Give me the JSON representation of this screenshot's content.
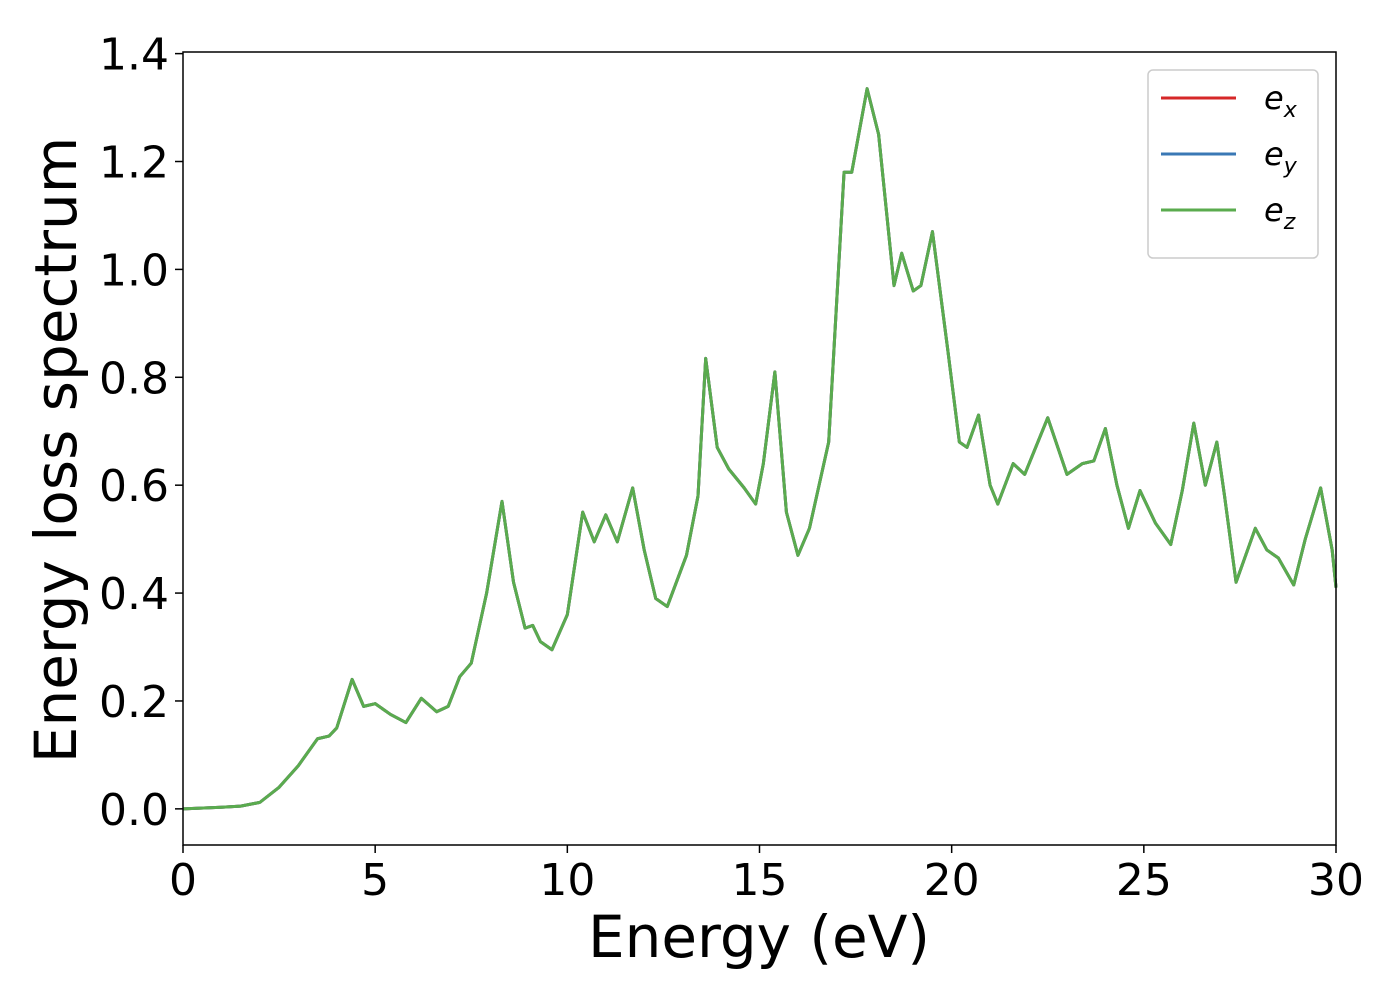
{
  "chart_data": {
    "type": "line",
    "xlabel": "Energy (eV)",
    "ylabel": "Energy loss spectrum",
    "x": [
      0,
      1,
      1.5,
      2,
      2.5,
      3,
      3.5,
      3.8,
      4.0,
      4.4,
      4.7,
      5.0,
      5.4,
      5.8,
      6.2,
      6.6,
      6.9,
      7.2,
      7.5,
      7.9,
      8.3,
      8.6,
      8.9,
      9.1,
      9.3,
      9.6,
      10.0,
      10.4,
      10.7,
      11.0,
      11.3,
      11.7,
      12.0,
      12.3,
      12.6,
      13.1,
      13.4,
      13.6,
      13.9,
      14.2,
      14.6,
      14.9,
      15.1,
      15.4,
      15.7,
      16.0,
      16.3,
      16.8,
      17.2,
      17.4,
      17.8,
      18.1,
      18.5,
      18.7,
      19.0,
      19.2,
      19.5,
      19.9,
      20.2,
      20.4,
      20.7,
      21.0,
      21.2,
      21.6,
      21.9,
      22.5,
      23.0,
      23.4,
      23.7,
      24.0,
      24.3,
      24.6,
      24.9,
      25.3,
      25.7,
      26.0,
      26.3,
      26.6,
      26.9,
      27.1,
      27.4,
      27.9,
      28.2,
      28.5,
      28.9,
      29.2,
      29.6,
      29.9,
      30.0
    ],
    "series": [
      {
        "name": "ex",
        "color": "#d62728",
        "values": [
          0,
          0.003,
          0.005,
          0.012,
          0.04,
          0.08,
          0.13,
          0.135,
          0.15,
          0.24,
          0.19,
          0.195,
          0.175,
          0.16,
          0.205,
          0.18,
          0.19,
          0.245,
          0.27,
          0.4,
          0.57,
          0.42,
          0.335,
          0.34,
          0.31,
          0.295,
          0.36,
          0.55,
          0.495,
          0.545,
          0.495,
          0.595,
          0.48,
          0.39,
          0.375,
          0.47,
          0.58,
          0.835,
          0.67,
          0.63,
          0.595,
          0.565,
          0.64,
          0.81,
          0.55,
          0.47,
          0.52,
          0.68,
          1.18,
          1.18,
          1.335,
          1.25,
          0.97,
          1.03,
          0.96,
          0.97,
          1.07,
          0.85,
          0.68,
          0.67,
          0.73,
          0.6,
          0.565,
          0.64,
          0.62,
          0.725,
          0.62,
          0.64,
          0.645,
          0.705,
          0.6,
          0.52,
          0.59,
          0.53,
          0.49,
          0.59,
          0.715,
          0.6,
          0.68,
          0.58,
          0.42,
          0.52,
          0.48,
          0.465,
          0.415,
          0.5,
          0.595,
          0.48,
          0.41
        ]
      },
      {
        "name": "ey",
        "color": "#3a78b5",
        "values": [
          0,
          0.003,
          0.005,
          0.012,
          0.04,
          0.08,
          0.13,
          0.135,
          0.15,
          0.24,
          0.19,
          0.195,
          0.175,
          0.16,
          0.205,
          0.18,
          0.19,
          0.245,
          0.27,
          0.4,
          0.57,
          0.42,
          0.335,
          0.34,
          0.31,
          0.295,
          0.36,
          0.55,
          0.495,
          0.545,
          0.495,
          0.595,
          0.48,
          0.39,
          0.375,
          0.47,
          0.58,
          0.835,
          0.67,
          0.63,
          0.595,
          0.565,
          0.64,
          0.81,
          0.55,
          0.47,
          0.52,
          0.68,
          1.18,
          1.18,
          1.335,
          1.25,
          0.97,
          1.03,
          0.96,
          0.97,
          1.07,
          0.85,
          0.68,
          0.67,
          0.73,
          0.6,
          0.565,
          0.64,
          0.62,
          0.725,
          0.62,
          0.64,
          0.645,
          0.705,
          0.6,
          0.52,
          0.59,
          0.53,
          0.49,
          0.59,
          0.715,
          0.6,
          0.68,
          0.58,
          0.42,
          0.52,
          0.48,
          0.465,
          0.415,
          0.5,
          0.595,
          0.48,
          0.41
        ]
      },
      {
        "name": "ez",
        "color": "#5aab4e",
        "values": [
          0,
          0.003,
          0.005,
          0.012,
          0.04,
          0.08,
          0.13,
          0.135,
          0.15,
          0.24,
          0.19,
          0.195,
          0.175,
          0.16,
          0.205,
          0.18,
          0.19,
          0.245,
          0.27,
          0.4,
          0.57,
          0.42,
          0.335,
          0.34,
          0.31,
          0.295,
          0.36,
          0.55,
          0.495,
          0.545,
          0.495,
          0.595,
          0.48,
          0.39,
          0.375,
          0.47,
          0.58,
          0.835,
          0.67,
          0.63,
          0.595,
          0.565,
          0.64,
          0.81,
          0.55,
          0.47,
          0.52,
          0.68,
          1.18,
          1.18,
          1.335,
          1.25,
          0.97,
          1.03,
          0.96,
          0.97,
          1.07,
          0.85,
          0.68,
          0.67,
          0.73,
          0.6,
          0.565,
          0.64,
          0.62,
          0.725,
          0.62,
          0.64,
          0.645,
          0.705,
          0.6,
          0.52,
          0.59,
          0.53,
          0.49,
          0.59,
          0.715,
          0.6,
          0.68,
          0.58,
          0.42,
          0.52,
          0.48,
          0.465,
          0.415,
          0.5,
          0.595,
          0.48,
          0.41
        ]
      }
    ],
    "xlim": [
      0,
      30
    ],
    "xticks": [
      0,
      5,
      10,
      15,
      20,
      25,
      30
    ],
    "ylim": [
      -0.067,
      1.403
    ],
    "yticks": [
      {
        "value": 0,
        "label": "0.0"
      },
      0.2,
      0.4,
      0.6,
      0.8,
      {
        "value": 1,
        "label": "1.0"
      },
      1.2,
      1.4
    ],
    "legend": "upper right"
  }
}
